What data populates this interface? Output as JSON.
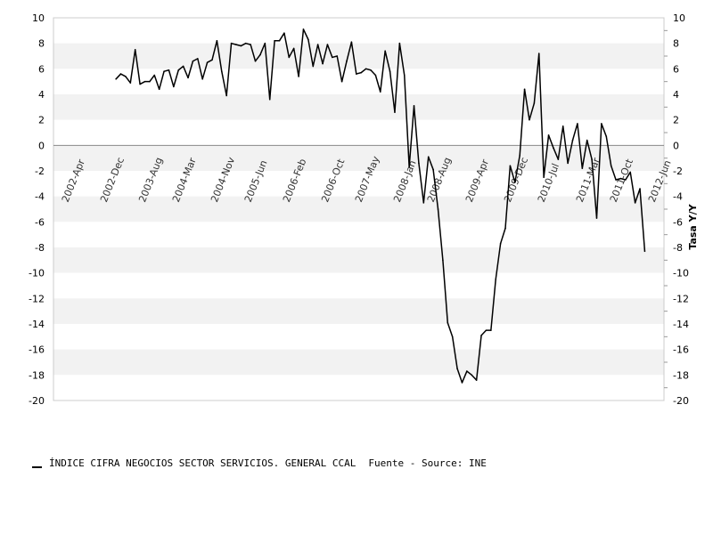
{
  "chart_data": {
    "type": "line",
    "title": "",
    "ylabel_right": "Tasa Y/Y",
    "ylim": [
      -20,
      10
    ],
    "yticks": [
      10,
      8,
      6,
      4,
      2,
      0,
      -2,
      -4,
      -6,
      -8,
      -10,
      -12,
      -14,
      -16,
      -18,
      -20
    ],
    "ytick_labels": [
      "10",
      "8",
      "6",
      "4",
      "2",
      "0",
      "-2",
      "-4",
      "-6",
      "-8",
      "-10",
      "-12",
      "-14",
      "-16",
      "-18",
      "-20"
    ],
    "xlim": [
      "2002-01",
      "2012-08"
    ],
    "xtick_positions": [
      "2002-04",
      "2002-12",
      "2003-08",
      "2004-03",
      "2004-11",
      "2005-06",
      "2006-02",
      "2006-10",
      "2007-05",
      "2008-01",
      "2008-08",
      "2009-04",
      "2009-12",
      "2010-07",
      "2011-03",
      "2011-10",
      "2012-06"
    ],
    "xtick_labels": [
      "2002-Apr",
      "2002-Dec",
      "2003-Aug",
      "2004-Mar",
      "2004-Nov",
      "2005-Jun",
      "2006-Feb",
      "2006-Oct",
      "2007-May",
      "2008-Jan",
      "2008-Aug",
      "2009-Apr",
      "2009-Dec",
      "2010-Jul",
      "2011-Mar",
      "2011-Oct",
      "2012-Jun"
    ],
    "grid": "alternating horizontal bands",
    "series": [
      {
        "name": "ÍNDICE CIFRA NEGOCIOS SECTOR SERVICIOS. GENERAL CCAL",
        "color": "#000000",
        "points": [
          [
            "2003-02",
            5.2
          ],
          [
            "2003-03",
            5.6
          ],
          [
            "2003-04",
            5.4
          ],
          [
            "2003-05",
            4.9
          ],
          [
            "2003-06",
            7.5
          ],
          [
            "2003-07",
            4.8
          ],
          [
            "2003-08",
            5.0
          ],
          [
            "2003-09",
            5.0
          ],
          [
            "2003-10",
            5.5
          ],
          [
            "2003-11",
            4.4
          ],
          [
            "2003-12",
            5.8
          ],
          [
            "2004-01",
            5.9
          ],
          [
            "2004-02",
            4.6
          ],
          [
            "2004-03",
            5.9
          ],
          [
            "2004-04",
            6.2
          ],
          [
            "2004-05",
            5.3
          ],
          [
            "2004-06",
            6.6
          ],
          [
            "2004-07",
            6.8
          ],
          [
            "2004-08",
            5.2
          ],
          [
            "2004-09",
            6.5
          ],
          [
            "2004-10",
            6.7
          ],
          [
            "2004-11",
            8.2
          ],
          [
            "2004-12",
            5.8
          ],
          [
            "2005-01",
            3.9
          ],
          [
            "2005-02",
            8.0
          ],
          [
            "2005-03",
            7.9
          ],
          [
            "2005-04",
            7.8
          ],
          [
            "2005-05",
            8.0
          ],
          [
            "2005-06",
            7.9
          ],
          [
            "2005-07",
            6.6
          ],
          [
            "2005-08",
            7.1
          ],
          [
            "2005-09",
            8.0
          ],
          [
            "2005-10",
            3.6
          ],
          [
            "2005-11",
            8.2
          ],
          [
            "2005-12",
            8.2
          ],
          [
            "2006-01",
            8.8
          ],
          [
            "2006-02",
            6.9
          ],
          [
            "2006-03",
            7.6
          ],
          [
            "2006-04",
            5.4
          ],
          [
            "2006-05",
            9.1
          ],
          [
            "2006-06",
            8.3
          ],
          [
            "2006-07",
            6.2
          ],
          [
            "2006-08",
            7.9
          ],
          [
            "2006-09",
            6.4
          ],
          [
            "2006-10",
            7.9
          ],
          [
            "2006-11",
            6.9
          ],
          [
            "2006-12",
            7.0
          ],
          [
            "2007-01",
            5.0
          ],
          [
            "2007-02",
            6.6
          ],
          [
            "2007-03",
            8.1
          ],
          [
            "2007-04",
            5.6
          ],
          [
            "2007-05",
            5.7
          ],
          [
            "2007-06",
            6.0
          ],
          [
            "2007-07",
            5.9
          ],
          [
            "2007-08",
            5.5
          ],
          [
            "2007-09",
            4.2
          ],
          [
            "2007-10",
            7.4
          ],
          [
            "2007-11",
            5.8
          ],
          [
            "2007-12",
            2.6
          ],
          [
            "2008-01",
            8.0
          ],
          [
            "2008-02",
            5.5
          ],
          [
            "2008-03",
            -1.7
          ],
          [
            "2008-04",
            3.1
          ],
          [
            "2008-05",
            -1.4
          ],
          [
            "2008-06",
            -4.5
          ],
          [
            "2008-07",
            -0.9
          ],
          [
            "2008-08",
            -1.9
          ],
          [
            "2008-09",
            -5.0
          ],
          [
            "2008-10",
            -9.0
          ],
          [
            "2008-11",
            -13.9
          ],
          [
            "2008-12",
            -15.0
          ],
          [
            "2009-01",
            -17.5
          ],
          [
            "2009-02",
            -18.6
          ],
          [
            "2009-03",
            -17.7
          ],
          [
            "2009-04",
            -18.0
          ],
          [
            "2009-05",
            -18.4
          ],
          [
            "2009-06",
            -14.9
          ],
          [
            "2009-07",
            -14.5
          ],
          [
            "2009-08",
            -14.5
          ],
          [
            "2009-09",
            -10.5
          ],
          [
            "2009-10",
            -7.7
          ],
          [
            "2009-11",
            -6.5
          ],
          [
            "2009-12",
            -1.6
          ],
          [
            "2010-01",
            -2.9
          ],
          [
            "2010-02",
            -0.8
          ],
          [
            "2010-03",
            4.4
          ],
          [
            "2010-04",
            2.0
          ],
          [
            "2010-05",
            3.3
          ],
          [
            "2010-06",
            7.2
          ],
          [
            "2010-07",
            -2.5
          ],
          [
            "2010-08",
            0.8
          ],
          [
            "2010-09",
            -0.2
          ],
          [
            "2010-10",
            -1.1
          ],
          [
            "2010-11",
            1.5
          ],
          [
            "2010-12",
            -1.4
          ],
          [
            "2011-01",
            0.4
          ],
          [
            "2011-02",
            1.7
          ],
          [
            "2011-03",
            -1.8
          ],
          [
            "2011-04",
            0.4
          ],
          [
            "2011-05",
            -1.1
          ],
          [
            "2011-06",
            -5.7
          ],
          [
            "2011-07",
            1.7
          ],
          [
            "2011-08",
            0.7
          ],
          [
            "2011-09",
            -1.6
          ],
          [
            "2011-10",
            -2.7
          ],
          [
            "2011-11",
            -2.6
          ],
          [
            "2011-12",
            -2.7
          ],
          [
            "2012-01",
            -2.1
          ],
          [
            "2012-02",
            -4.5
          ],
          [
            "2012-03",
            -3.4
          ],
          [
            "2012-04",
            -8.3
          ]
        ]
      }
    ]
  },
  "legend": {
    "series_label": "ÍNDICE CIFRA NEGOCIOS SECTOR SERVICIOS. GENERAL CCAL",
    "source_label": "Fuente - Source: INE"
  }
}
